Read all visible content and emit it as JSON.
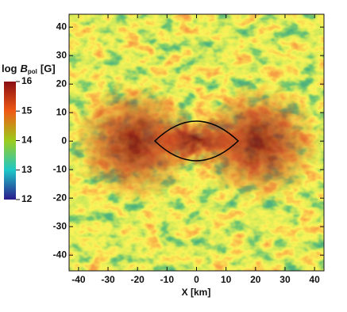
{
  "chart_data": {
    "type": "heatmap",
    "xlabel": "X [km]",
    "xlim": [
      -43.2,
      43.2
    ],
    "xticks": [
      -40,
      -30,
      -20,
      -10,
      0,
      10,
      20,
      30,
      40
    ],
    "ylim": [
      -45.5,
      44.5
    ],
    "yticks": [
      -40,
      -30,
      -20,
      -10,
      0,
      10,
      20,
      30,
      40
    ],
    "colorbar": {
      "label": {
        "prefix": "log",
        "symbol": "B",
        "subscript": "pol",
        "unit": "[G]"
      },
      "lim": [
        12,
        16
      ],
      "ticks": [
        12,
        13,
        14,
        15,
        16
      ],
      "colors": [
        "#2a1a8c",
        "#1fc8c8",
        "#9ccc1c",
        "#f05a14",
        "#8a0f14"
      ]
    }
  }
}
